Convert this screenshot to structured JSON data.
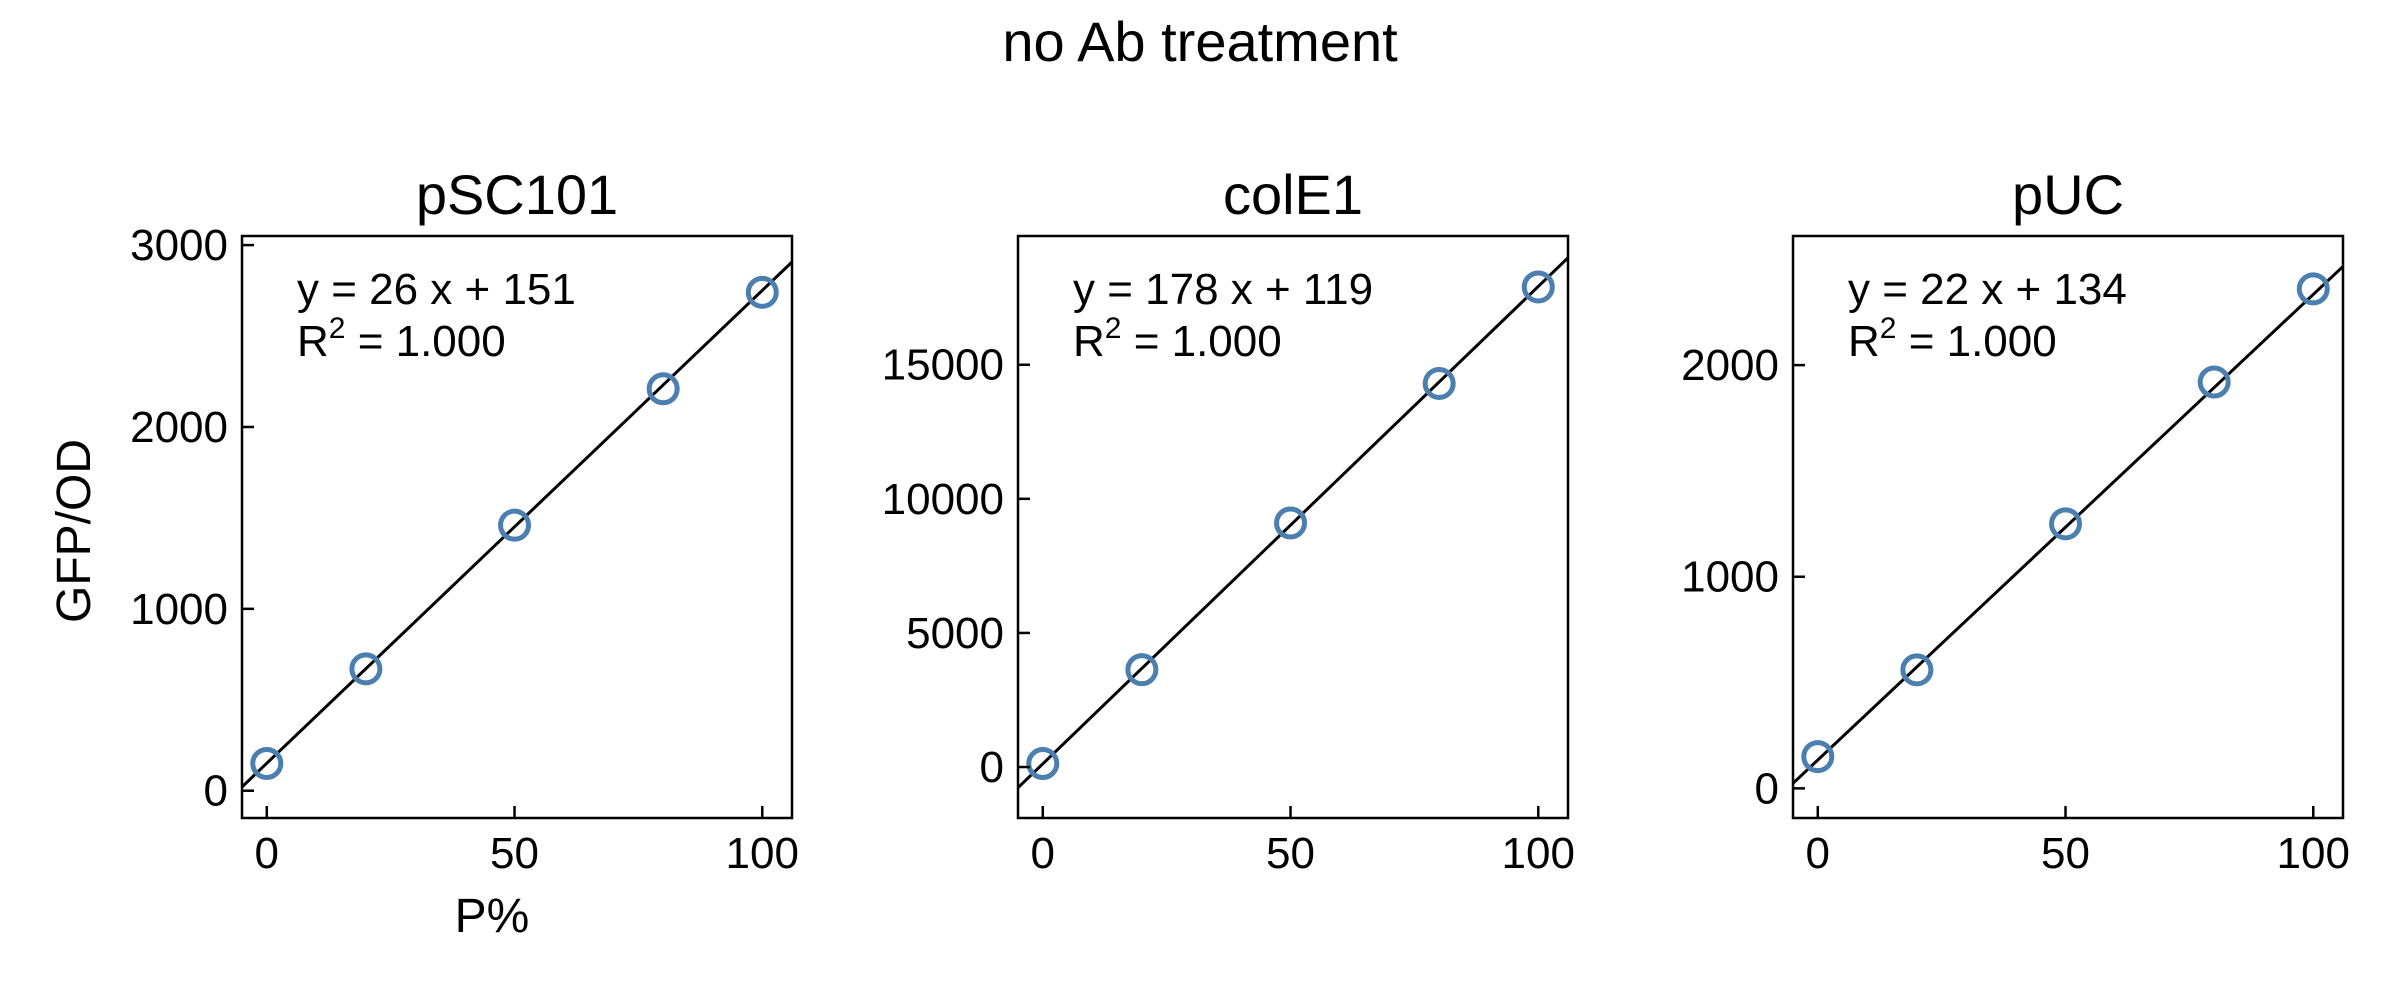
{
  "figure": {
    "suptitle": "no Ab treatment"
  },
  "chart_data": [
    {
      "type": "scatter",
      "title": "pSC101",
      "xlabel": "P%",
      "ylabel": "GFP/OD",
      "xlim": [
        -5,
        106
      ],
      "ylim": [
        -150,
        3050
      ],
      "xticks": [
        0,
        50,
        100
      ],
      "yticks": [
        0,
        1000,
        2000,
        3000
      ],
      "grid": false,
      "series": [
        {
          "x": [
            0,
            20,
            50,
            80,
            100
          ],
          "y": [
            150,
            670,
            1460,
            2210,
            2740
          ]
        }
      ],
      "fit": {
        "slope": 26,
        "intercept": 151,
        "equation": "y = 26 x + 151",
        "r2_label": "R",
        "r2_sup": "2",
        "r2_value": " = 1.000"
      },
      "colors": {
        "marker": "#4a7fb0",
        "line": "#000000"
      }
    },
    {
      "type": "scatter",
      "title": "colE1",
      "xlabel": "",
      "ylabel": "",
      "xlim": [
        -5,
        106
      ],
      "ylim": [
        -1900,
        19800
      ],
      "xticks": [
        0,
        50,
        100
      ],
      "yticks": [
        0,
        5000,
        10000,
        15000
      ],
      "grid": false,
      "series": [
        {
          "x": [
            0,
            20,
            50,
            80,
            100
          ],
          "y": [
            130,
            3630,
            9100,
            14300,
            17900
          ]
        }
      ],
      "fit": {
        "slope": 178,
        "intercept": 119,
        "equation": "y = 178 x + 119",
        "r2_label": "R",
        "r2_sup": "2",
        "r2_value": " = 1.000"
      },
      "colors": {
        "marker": "#4a7fb0",
        "line": "#000000"
      }
    },
    {
      "type": "scatter",
      "title": "pUC",
      "xlabel": "",
      "ylabel": "",
      "xlim": [
        -5,
        106
      ],
      "ylim": [
        -140,
        2610
      ],
      "xticks": [
        0,
        50,
        100
      ],
      "yticks": [
        0,
        1000,
        2000
      ],
      "grid": false,
      "series": [
        {
          "x": [
            0,
            20,
            50,
            80,
            100
          ],
          "y": [
            150,
            560,
            1250,
            1920,
            2360
          ]
        }
      ],
      "fit": {
        "slope": 22,
        "intercept": 134,
        "equation": "y = 22 x + 134",
        "r2_label": "R",
        "r2_sup": "2",
        "r2_value": " = 1.000"
      },
      "colors": {
        "marker": "#4a7fb0",
        "line": "#000000"
      }
    }
  ]
}
